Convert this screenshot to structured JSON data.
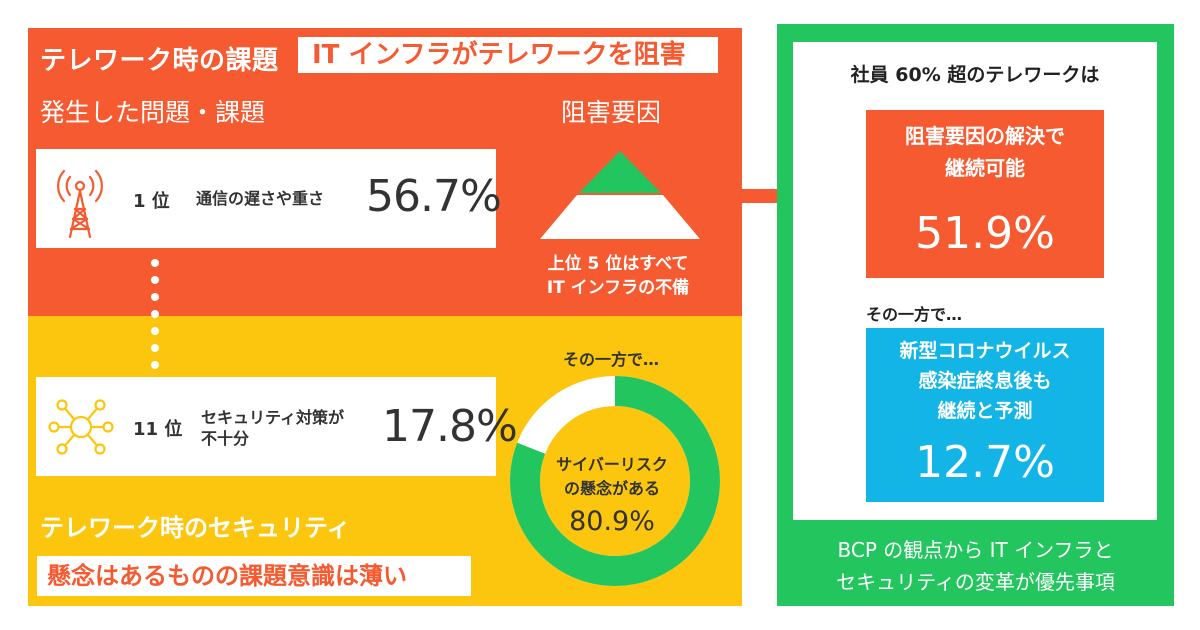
{
  "colors": {
    "orange": "#f55a30",
    "yellow": "#fcc60e",
    "green": "#22c55e",
    "blue": "#13b5e6",
    "white": "#ffffff",
    "text_dark": "#333333"
  },
  "left": {
    "title": "テレワーク時の課題",
    "it_headline": "IT インフラがテレワークを阻害",
    "problems_heading": "発生した問題・課題",
    "factors_heading": "阻害要因",
    "ranks": [
      {
        "rank": "1 位",
        "label": "通信の遅さや重さ",
        "label2": "",
        "value": "56.7%",
        "icon": "radio-tower-icon"
      },
      {
        "rank": "11 位",
        "label": "セキュリティ対策が",
        "label2": "不十分",
        "value": "17.8%",
        "icon": "network-nodes-icon"
      }
    ],
    "pyramid_caption_line1": "上位 5 位はすべて",
    "pyramid_caption_line2": "IT インフラの不備",
    "on_the_other_hand": "その一方で…",
    "donut": {
      "label_line1": "サイバーリスク",
      "label_line2": "の懸念がある",
      "value": "80.9%",
      "percent": 80.9
    },
    "security_title": "テレワーク時のセキュリティ",
    "concern_headline": "懸念はあるものの課題意識は薄い"
  },
  "right": {
    "heading": "社員 60% 超のテレワークは",
    "box1_line1": "阻害要因の解決で",
    "box1_line2": "継続可能",
    "box1_value": "51.9%",
    "on_the_other_hand": "その一方で…",
    "box2_line1": "新型コロナウイルス",
    "box2_line2": "感染症終息後も",
    "box2_line3": "継続と予測",
    "box2_value": "12.7%",
    "conclusion_line1": "BCP の観点から IT インフラと",
    "conclusion_line2": "セキュリティの変革が優先事項"
  }
}
